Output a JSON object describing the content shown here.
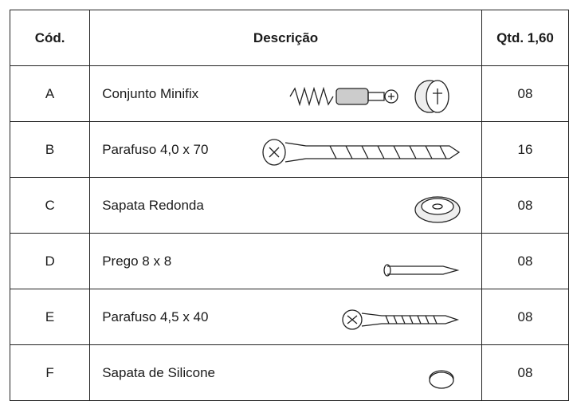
{
  "table": {
    "header": [
      "Cód.",
      "Descrição",
      "Qtd. 1,60"
    ],
    "rows": [
      [
        "A",
        "Conjunto Minifix",
        "08"
      ],
      [
        "B",
        "Parafuso 4,0 x 70",
        "16"
      ],
      [
        "C",
        "Sapata Redonda",
        "08"
      ],
      [
        "D",
        "Prego 8 x 8",
        "08"
      ],
      [
        "E",
        "Parafuso 4,5 x 40",
        "08"
      ],
      [
        "F",
        "Sapata de Silicone",
        "08"
      ]
    ]
  }
}
